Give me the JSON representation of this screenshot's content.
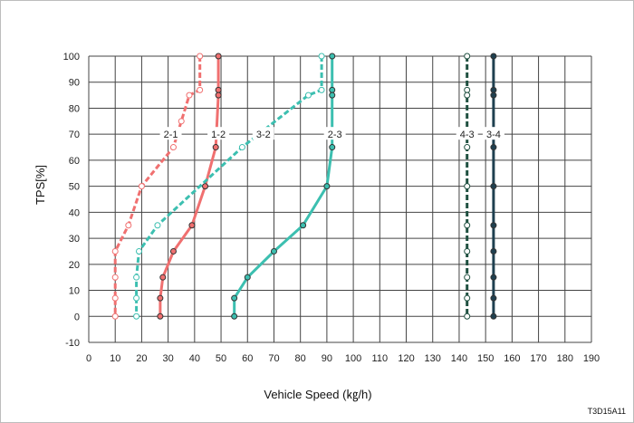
{
  "chart_data": {
    "type": "line",
    "xlabel": "Vehicle Speed (㎏/h)",
    "ylabel": "TPS[%]",
    "xlim": [
      0,
      190
    ],
    "ylim": [
      -10,
      100
    ],
    "xticks": [
      0,
      10,
      20,
      30,
      40,
      50,
      60,
      70,
      80,
      90,
      100,
      110,
      120,
      130,
      140,
      150,
      160,
      170,
      180,
      190
    ],
    "yticks": [
      -10,
      0,
      10,
      20,
      30,
      40,
      50,
      60,
      70,
      80,
      90,
      100
    ],
    "grid": true,
    "series": [
      {
        "name": "2-1",
        "color": "#f07070",
        "style": "dashed",
        "marker": "open",
        "label_at": [
          31,
          70
        ],
        "points": [
          [
            42,
            100
          ],
          [
            42,
            87
          ],
          [
            38,
            85
          ],
          [
            35,
            75
          ],
          [
            32,
            65
          ],
          [
            20,
            50
          ],
          [
            15,
            35
          ],
          [
            10,
            25
          ],
          [
            10,
            15
          ],
          [
            10,
            7
          ],
          [
            10,
            0
          ]
        ]
      },
      {
        "name": "1-2",
        "color": "#f07070",
        "style": "solid",
        "marker": "filled",
        "label_at": [
          49,
          70
        ],
        "points": [
          [
            49,
            100
          ],
          [
            49,
            87
          ],
          [
            49,
            85
          ],
          [
            48,
            65
          ],
          [
            44,
            50
          ],
          [
            39,
            35
          ],
          [
            32,
            25
          ],
          [
            28,
            15
          ],
          [
            27,
            7
          ],
          [
            27,
            0
          ]
        ]
      },
      {
        "name": "3-2",
        "color": "#3cbfb0",
        "style": "dashed",
        "marker": "open",
        "label_at": [
          66,
          70
        ],
        "points": [
          [
            88,
            100
          ],
          [
            88,
            87
          ],
          [
            83,
            85
          ],
          [
            58,
            65
          ],
          [
            26,
            35
          ],
          [
            19,
            25
          ],
          [
            18,
            15
          ],
          [
            18,
            7
          ],
          [
            18,
            0
          ]
        ]
      },
      {
        "name": "2-3",
        "color": "#3cbfb0",
        "style": "solid",
        "marker": "filled",
        "label_at": [
          93,
          70
        ],
        "points": [
          [
            92,
            100
          ],
          [
            92,
            87
          ],
          [
            92,
            85
          ],
          [
            92,
            65
          ],
          [
            90,
            50
          ],
          [
            81,
            35
          ],
          [
            70,
            25
          ],
          [
            60,
            15
          ],
          [
            55,
            7
          ],
          [
            55,
            0
          ]
        ]
      },
      {
        "name": "4-3",
        "color": "#1f5040",
        "style": "dashed",
        "marker": "open",
        "label_at": [
          143,
          70
        ],
        "points": [
          [
            143,
            100
          ],
          [
            143,
            87
          ],
          [
            143,
            85
          ],
          [
            143,
            65
          ],
          [
            143,
            50
          ],
          [
            143,
            35
          ],
          [
            143,
            25
          ],
          [
            143,
            15
          ],
          [
            143,
            7
          ],
          [
            143,
            0
          ]
        ]
      },
      {
        "name": "3-4",
        "color": "#1f4050",
        "style": "solid",
        "marker": "filled",
        "label_at": [
          153,
          70
        ],
        "points": [
          [
            153,
            100
          ],
          [
            153,
            87
          ],
          [
            153,
            85
          ],
          [
            153,
            65
          ],
          [
            153,
            50
          ],
          [
            153,
            35
          ],
          [
            153,
            25
          ],
          [
            153,
            15
          ],
          [
            153,
            7
          ],
          [
            153,
            0
          ]
        ]
      }
    ]
  },
  "figure_code": "T3D15A11"
}
